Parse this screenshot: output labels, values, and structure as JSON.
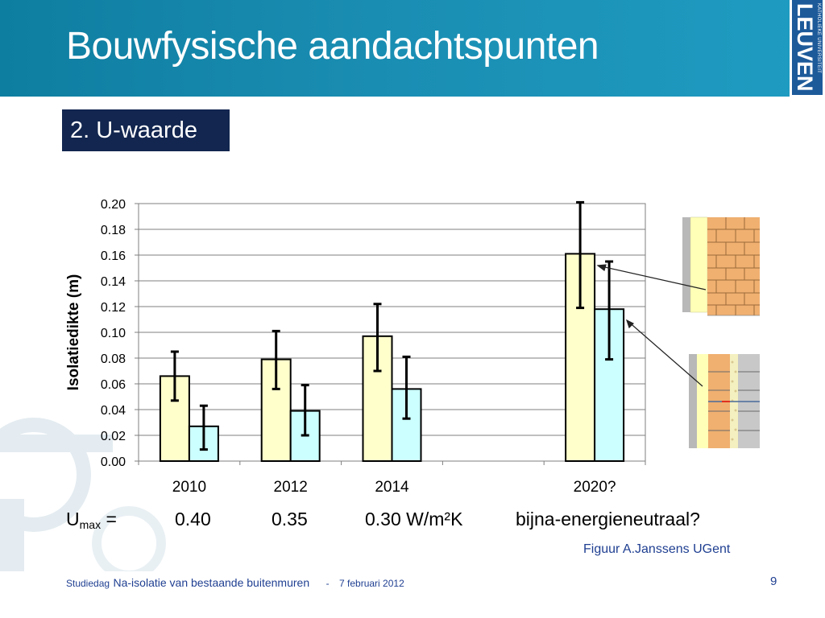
{
  "header": {
    "title": "Bouwfysische aandachtspunten"
  },
  "logo": {
    "line1": "KATHOLIEKE UNIVERSITEIT",
    "line2": "LEUVEN"
  },
  "section": {
    "label": "2. U-waarde"
  },
  "chart_data": {
    "type": "bar",
    "ylabel": "Isolatiedikte (m)",
    "xlabel": "",
    "ylim": [
      0,
      0.2
    ],
    "yticks": [
      "0.00",
      "0.02",
      "0.04",
      "0.06",
      "0.08",
      "0.10",
      "0.12",
      "0.14",
      "0.16",
      "0.18",
      "0.20"
    ],
    "categories": [
      "2010",
      "2012",
      "2014",
      "",
      "2020?"
    ],
    "grid": true,
    "series": [
      {
        "values": [
          0.066,
          0.079,
          0.097,
          null,
          0.161
        ],
        "err_low": [
          0.047,
          0.056,
          0.07,
          null,
          0.119
        ],
        "err_high": [
          0.085,
          0.101,
          0.122,
          null,
          0.201
        ],
        "color": "#ffffcc"
      },
      {
        "values": [
          0.027,
          0.039,
          0.056,
          null,
          0.118
        ],
        "err_low": [
          0.009,
          0.02,
          0.033,
          null,
          0.079
        ],
        "err_high": [
          0.043,
          0.059,
          0.081,
          null,
          0.155
        ],
        "color": "#ccffff"
      }
    ]
  },
  "umax": {
    "label": "U",
    "sub": "max",
    "eq": " =",
    "values": [
      "0.40",
      "0.35",
      "0.30 W/m²K",
      "bijna-energieneutraal?"
    ]
  },
  "credit": "Figuur A.Janssens UGent",
  "footer": {
    "prefix": "Studiedag",
    "title": "Na-isolatie van bestaande buitenmuren",
    "sep": "-",
    "date": "7 februari 2012"
  },
  "page_number": "9"
}
